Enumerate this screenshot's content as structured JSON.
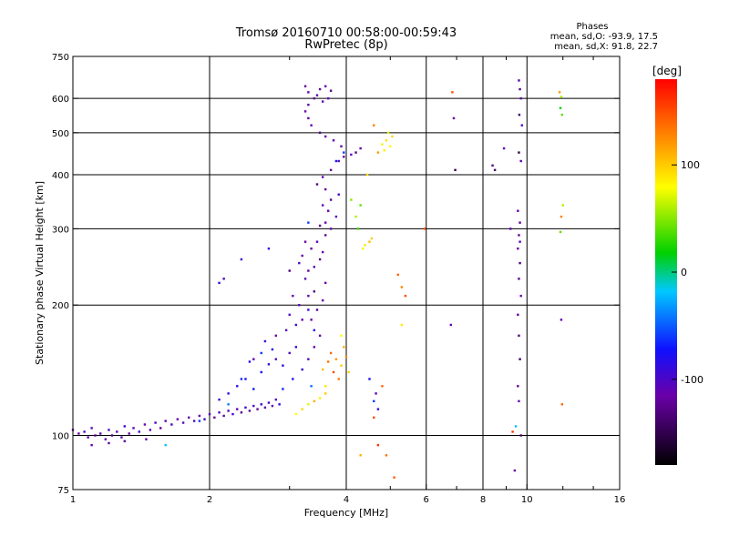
{
  "chart_data": {
    "type": "scatter",
    "title": "Tromsø 20160710 00:58:00-00:59:43",
    "subtitle": "RwPretec (8p)",
    "xlabel": "Frequency [MHz]",
    "ylabel": "Stationary phase Virtual Height [km]",
    "x_scale": "log",
    "y_scale": "log",
    "xlim": [
      1,
      16
    ],
    "ylim": [
      75,
      750
    ],
    "x_ticks": [
      1,
      2,
      4,
      6,
      8,
      10,
      16
    ],
    "x_tick_labels": [
      "1",
      "2",
      "4",
      "6",
      "8",
      "10",
      "16"
    ],
    "y_ticks": [
      75,
      100,
      200,
      300,
      400,
      500,
      600,
      750
    ],
    "y_tick_labels": [
      "75",
      "100",
      "200",
      "300",
      "400",
      "500",
      "600",
      "750"
    ],
    "grid": true,
    "stats": {
      "heading": "Phases",
      "line_o": "mean, sd,O: -93.9, 17.5",
      "line_x": "mean, sd,X:  91.8, 22.7"
    },
    "colorbar": {
      "label": "[deg]",
      "range": [
        -180,
        180
      ],
      "ticks": [
        100,
        0,
        -100
      ],
      "tick_labels": [
        "100",
        "0",
        "-100"
      ]
    },
    "series": [
      {
        "points": [
          [
            1.0,
            103,
            -110
          ],
          [
            1.03,
            101,
            -115
          ],
          [
            1.06,
            102,
            -100
          ],
          [
            1.08,
            99,
            -120
          ],
          [
            1.1,
            104,
            -105
          ],
          [
            1.12,
            100,
            -125
          ],
          [
            1.15,
            101,
            -110
          ],
          [
            1.18,
            98,
            -118
          ],
          [
            1.2,
            103,
            -102
          ],
          [
            1.22,
            100,
            -130
          ],
          [
            1.25,
            102,
            -112
          ],
          [
            1.28,
            99,
            -108
          ],
          [
            1.3,
            105,
            -95
          ],
          [
            1.33,
            101,
            -120
          ],
          [
            1.36,
            104,
            -110
          ],
          [
            1.4,
            102,
            -98
          ],
          [
            1.44,
            106,
            -115
          ],
          [
            1.48,
            103,
            -105
          ],
          [
            1.52,
            107,
            -100
          ],
          [
            1.56,
            104,
            -122
          ],
          [
            1.6,
            108,
            -110
          ],
          [
            1.65,
            106,
            -95
          ],
          [
            1.7,
            109,
            -112
          ],
          [
            1.75,
            107,
            -104
          ],
          [
            1.8,
            110,
            -118
          ],
          [
            1.85,
            108,
            -100
          ],
          [
            1.9,
            111,
            -110
          ],
          [
            1.95,
            109,
            -96
          ],
          [
            2.0,
            112,
            -108
          ],
          [
            2.05,
            110,
            -115
          ],
          [
            2.1,
            113,
            -102
          ],
          [
            2.15,
            111,
            -120
          ],
          [
            2.2,
            114,
            -105
          ],
          [
            2.25,
            112,
            -98
          ],
          [
            2.3,
            115,
            -110
          ],
          [
            2.35,
            113,
            -125
          ],
          [
            2.4,
            116,
            -100
          ],
          [
            2.45,
            114,
            -112
          ],
          [
            2.5,
            117,
            -105
          ],
          [
            2.55,
            115,
            -118
          ],
          [
            2.6,
            118,
            -95
          ],
          [
            2.65,
            116,
            -108
          ],
          [
            2.7,
            119,
            -100
          ],
          [
            2.75,
            117,
            -115
          ],
          [
            2.8,
            121,
            -105
          ],
          [
            2.85,
            118,
            -90
          ],
          [
            1.1,
            95,
            -112
          ],
          [
            1.2,
            96,
            -118
          ],
          [
            1.3,
            97,
            -122
          ],
          [
            1.45,
            98,
            -110
          ],
          [
            2.1,
            121,
            -95
          ],
          [
            2.2,
            125,
            -85
          ],
          [
            2.3,
            130,
            -90
          ],
          [
            2.4,
            135,
            -80
          ],
          [
            2.5,
            128,
            -70
          ],
          [
            2.6,
            140,
            -75
          ],
          [
            2.7,
            146,
            -92
          ],
          [
            2.8,
            150,
            -105
          ],
          [
            2.9,
            145,
            -85
          ],
          [
            3.0,
            155,
            -100
          ],
          [
            3.1,
            160,
            -88
          ],
          [
            2.5,
            150,
            -110
          ],
          [
            2.65,
            165,
            -95
          ],
          [
            2.8,
            170,
            -115
          ],
          [
            2.95,
            175,
            -105
          ],
          [
            3.1,
            180,
            -92
          ],
          [
            3.2,
            185,
            -110
          ],
          [
            3.0,
            190,
            -100
          ],
          [
            2.6,
            155,
            -60
          ],
          [
            2.75,
            158,
            -72
          ],
          [
            2.35,
            135,
            -65
          ],
          [
            2.45,
            148,
            -80
          ],
          [
            2.9,
            128,
            -66
          ],
          [
            3.05,
            135,
            -78
          ],
          [
            3.2,
            142,
            -90
          ],
          [
            3.3,
            150,
            -108
          ],
          [
            3.4,
            160,
            -115
          ],
          [
            3.5,
            170,
            -120
          ],
          [
            3.35,
            185,
            -112
          ],
          [
            3.45,
            195,
            -125
          ],
          [
            3.55,
            205,
            -118
          ],
          [
            3.3,
            210,
            -110
          ],
          [
            3.4,
            215,
            -132
          ],
          [
            3.6,
            225,
            -115
          ],
          [
            3.25,
            230,
            -105
          ],
          [
            3.3,
            240,
            -120
          ],
          [
            3.4,
            245,
            -110
          ],
          [
            3.5,
            255,
            -128
          ],
          [
            3.55,
            265,
            -112
          ],
          [
            3.35,
            270,
            -118
          ],
          [
            3.45,
            280,
            -105
          ],
          [
            3.6,
            290,
            -122
          ],
          [
            3.7,
            300,
            -110
          ],
          [
            3.5,
            305,
            -130
          ],
          [
            3.6,
            310,
            -115
          ],
          [
            3.8,
            320,
            -108
          ],
          [
            3.65,
            330,
            -120
          ],
          [
            3.55,
            340,
            -112
          ],
          [
            3.7,
            350,
            -125
          ],
          [
            3.85,
            360,
            -100
          ],
          [
            3.6,
            370,
            -118
          ],
          [
            3.45,
            380,
            -130
          ],
          [
            3.55,
            395,
            -110
          ],
          [
            3.7,
            410,
            -122
          ],
          [
            3.85,
            430,
            -105
          ],
          [
            3.95,
            440,
            -118
          ],
          [
            4.1,
            445,
            -110
          ],
          [
            4.2,
            450,
            -125
          ],
          [
            4.3,
            460,
            -112
          ],
          [
            3.9,
            465,
            -120
          ],
          [
            3.75,
            480,
            -108
          ],
          [
            3.6,
            490,
            -115
          ],
          [
            3.5,
            500,
            -128
          ],
          [
            3.35,
            520,
            -110
          ],
          [
            3.3,
            540,
            -122
          ],
          [
            3.25,
            560,
            -115
          ],
          [
            3.3,
            580,
            -105
          ],
          [
            3.4,
            600,
            -120
          ],
          [
            3.3,
            620,
            -112
          ],
          [
            3.5,
            630,
            -125
          ],
          [
            3.6,
            640,
            -110
          ],
          [
            3.7,
            625,
            -130
          ],
          [
            3.45,
            610,
            -118
          ],
          [
            3.55,
            590,
            -108
          ],
          [
            3.25,
            640,
            -120
          ],
          [
            3.65,
            600,
            -112
          ],
          [
            3.2,
            260,
            -110
          ],
          [
            3.25,
            280,
            -118
          ],
          [
            3.15,
            250,
            -100
          ],
          [
            3.05,
            210,
            -112
          ],
          [
            3.15,
            200,
            -105
          ],
          [
            3.3,
            195,
            -95
          ],
          [
            3.4,
            175,
            -85
          ],
          [
            3.7,
            155,
            140
          ],
          [
            3.8,
            150,
            120
          ],
          [
            3.9,
            145,
            100
          ],
          [
            3.75,
            140,
            150
          ],
          [
            3.85,
            135,
            130
          ],
          [
            3.95,
            160,
            110
          ],
          [
            3.6,
            130,
            90
          ],
          [
            3.65,
            148,
            135
          ],
          [
            4.0,
            152,
            125
          ],
          [
            4.05,
            140,
            95
          ],
          [
            3.55,
            142,
            105
          ],
          [
            3.9,
            170,
            80
          ],
          [
            3.1,
            112,
            80
          ],
          [
            3.2,
            115,
            95
          ],
          [
            3.3,
            118,
            70
          ],
          [
            3.4,
            120,
            110
          ],
          [
            3.5,
            122,
            85
          ],
          [
            3.6,
            125,
            100
          ],
          [
            4.4,
            275,
            90
          ],
          [
            4.5,
            280,
            105
          ],
          [
            4.35,
            270,
            85
          ],
          [
            4.55,
            285,
            100
          ],
          [
            4.8,
            470,
            75
          ],
          [
            4.9,
            480,
            90
          ],
          [
            5.0,
            465,
            80
          ],
          [
            4.85,
            455,
            85
          ],
          [
            5.05,
            490,
            95
          ],
          [
            4.95,
            500,
            70
          ],
          [
            5.2,
            235,
            140
          ],
          [
            5.3,
            220,
            130
          ],
          [
            5.4,
            210,
            150
          ],
          [
            4.6,
            110,
            150
          ],
          [
            4.8,
            130,
            140
          ],
          [
            4.7,
            95,
            160
          ],
          [
            4.9,
            90,
            135
          ],
          [
            5.1,
            80,
            145
          ],
          [
            4.2,
            320,
            60
          ],
          [
            4.3,
            340,
            40
          ],
          [
            4.25,
            300,
            30
          ],
          [
            2.1,
            225,
            -90
          ],
          [
            2.15,
            230,
            -100
          ],
          [
            2.35,
            255,
            -95
          ],
          [
            2.7,
            270,
            -85
          ],
          [
            3.0,
            240,
            -130
          ],
          [
            1.6,
            95,
            -20
          ],
          [
            1.9,
            108,
            -60
          ],
          [
            2.2,
            118,
            -40
          ],
          [
            3.35,
            130,
            -45
          ],
          [
            4.6,
            120,
            -60
          ],
          [
            4.7,
            115,
            -90
          ],
          [
            4.5,
            135,
            -75
          ],
          [
            4.65,
            125,
            -110
          ],
          [
            3.3,
            310,
            -60
          ],
          [
            3.8,
            430,
            -70
          ],
          [
            3.95,
            450,
            -60
          ],
          [
            6.8,
            180,
            -110
          ],
          [
            6.9,
            540,
            -120
          ],
          [
            6.95,
            410,
            -150
          ],
          [
            6.85,
            620,
            150
          ],
          [
            8.4,
            420,
            -130
          ],
          [
            8.5,
            410,
            -140
          ],
          [
            8.9,
            460,
            -110
          ],
          [
            9.3,
            102,
            160
          ],
          [
            9.45,
            105,
            -20
          ],
          [
            9.4,
            83,
            -120
          ],
          [
            9.2,
            300,
            -110
          ],
          [
            9.6,
            660,
            -110
          ],
          [
            9.65,
            630,
            -130
          ],
          [
            9.7,
            600,
            -120
          ],
          [
            9.62,
            550,
            -140
          ],
          [
            9.75,
            520,
            -100
          ],
          [
            9.6,
            450,
            -150
          ],
          [
            9.7,
            430,
            -120
          ],
          [
            9.55,
            330,
            -110
          ],
          [
            9.65,
            310,
            -125
          ],
          [
            9.6,
            290,
            -120
          ],
          [
            9.55,
            270,
            -115
          ],
          [
            9.65,
            250,
            -130
          ],
          [
            9.6,
            230,
            -125
          ],
          [
            9.7,
            210,
            -110
          ],
          [
            9.55,
            190,
            -120
          ],
          [
            9.6,
            170,
            -130
          ],
          [
            9.65,
            150,
            -140
          ],
          [
            9.55,
            130,
            -120
          ],
          [
            9.6,
            120,
            -115
          ],
          [
            9.7,
            100,
            -140
          ],
          [
            9.65,
            280,
            -105
          ],
          [
            11.8,
            620,
            120
          ],
          [
            11.9,
            605,
            60
          ],
          [
            11.85,
            570,
            20
          ],
          [
            11.95,
            550,
            40
          ],
          [
            12.0,
            340,
            60
          ],
          [
            11.9,
            320,
            130
          ],
          [
            11.85,
            295,
            40
          ],
          [
            11.9,
            185,
            -110
          ],
          [
            11.95,
            118,
            140
          ],
          [
            5.95,
            300,
            150
          ],
          [
            5.3,
            180,
            90
          ],
          [
            4.3,
            90,
            110
          ],
          [
            4.1,
            350,
            50
          ],
          [
            4.45,
            400,
            95
          ],
          [
            4.7,
            450,
            120
          ],
          [
            4.6,
            520,
            130
          ]
        ]
      }
    ]
  }
}
